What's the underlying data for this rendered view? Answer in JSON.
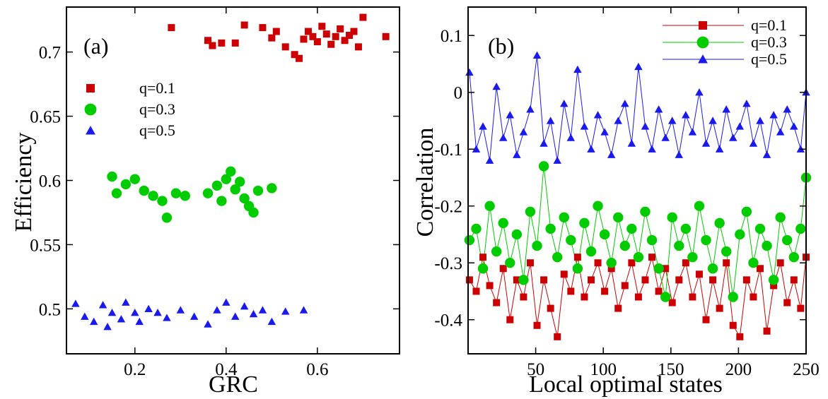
{
  "chart_data": [
    {
      "type": "scatter",
      "panel_label": "(a)",
      "xlabel": "GRC",
      "ylabel": "Efficiency",
      "xlim": [
        0.05,
        0.78
      ],
      "ylim": [
        0.465,
        0.735
      ],
      "xticks": [
        0.2,
        0.4,
        0.6
      ],
      "xtick_labels": [
        "0.2",
        "0.4",
        "0.6"
      ],
      "yticks": [
        0.5,
        0.55,
        0.6,
        0.65,
        0.7
      ],
      "ytick_labels": [
        "0.5",
        "0.55",
        "0.6",
        "0.65",
        "0.7"
      ],
      "grid": false,
      "legend": "top-left",
      "series": [
        {
          "name": "q=0.1",
          "marker": "square",
          "color": "#cc0000",
          "points": [
            [
              0.28,
              0.719
            ],
            [
              0.36,
              0.709
            ],
            [
              0.37,
              0.705
            ],
            [
              0.39,
              0.707
            ],
            [
              0.42,
              0.707
            ],
            [
              0.44,
              0.721
            ],
            [
              0.48,
              0.719
            ],
            [
              0.5,
              0.711
            ],
            [
              0.51,
              0.716
            ],
            [
              0.53,
              0.704
            ],
            [
              0.55,
              0.698
            ],
            [
              0.56,
              0.695
            ],
            [
              0.57,
              0.71
            ],
            [
              0.58,
              0.716
            ],
            [
              0.59,
              0.712
            ],
            [
              0.6,
              0.708
            ],
            [
              0.61,
              0.72
            ],
            [
              0.62,
              0.714
            ],
            [
              0.63,
              0.706
            ],
            [
              0.64,
              0.712
            ],
            [
              0.65,
              0.718
            ],
            [
              0.66,
              0.709
            ],
            [
              0.67,
              0.713
            ],
            [
              0.68,
              0.716
            ],
            [
              0.69,
              0.704
            ],
            [
              0.7,
              0.727
            ],
            [
              0.75,
              0.712
            ]
          ]
        },
        {
          "name": "q=0.3",
          "marker": "circle",
          "color": "#00cc00",
          "points": [
            [
              0.15,
              0.603
            ],
            [
              0.16,
              0.59
            ],
            [
              0.18,
              0.597
            ],
            [
              0.2,
              0.601
            ],
            [
              0.22,
              0.592
            ],
            [
              0.24,
              0.588
            ],
            [
              0.26,
              0.584
            ],
            [
              0.27,
              0.571
            ],
            [
              0.29,
              0.59
            ],
            [
              0.31,
              0.588
            ],
            [
              0.36,
              0.59
            ],
            [
              0.38,
              0.596
            ],
            [
              0.39,
              0.584
            ],
            [
              0.4,
              0.601
            ],
            [
              0.41,
              0.607
            ],
            [
              0.42,
              0.593
            ],
            [
              0.43,
              0.599
            ],
            [
              0.44,
              0.586
            ],
            [
              0.45,
              0.58
            ],
            [
              0.46,
              0.575
            ],
            [
              0.47,
              0.592
            ],
            [
              0.5,
              0.594
            ]
          ]
        },
        {
          "name": "q=0.5",
          "marker": "triangle",
          "color": "#1a1aee",
          "points": [
            [
              0.07,
              0.504
            ],
            [
              0.09,
              0.494
            ],
            [
              0.11,
              0.49
            ],
            [
              0.13,
              0.503
            ],
            [
              0.14,
              0.486
            ],
            [
              0.15,
              0.497
            ],
            [
              0.17,
              0.492
            ],
            [
              0.18,
              0.505
            ],
            [
              0.2,
              0.497
            ],
            [
              0.21,
              0.49
            ],
            [
              0.23,
              0.5
            ],
            [
              0.25,
              0.497
            ],
            [
              0.27,
              0.493
            ],
            [
              0.3,
              0.499
            ],
            [
              0.33,
              0.494
            ],
            [
              0.36,
              0.488
            ],
            [
              0.38,
              0.499
            ],
            [
              0.4,
              0.505
            ],
            [
              0.42,
              0.494
            ],
            [
              0.44,
              0.502
            ],
            [
              0.46,
              0.496
            ],
            [
              0.48,
              0.499
            ],
            [
              0.5,
              0.49
            ],
            [
              0.53,
              0.498
            ],
            [
              0.57,
              0.499
            ]
          ]
        }
      ]
    },
    {
      "type": "line",
      "panel_label": "(b)",
      "xlabel": "Local optimal states",
      "ylabel": "Correlation",
      "xlim": [
        0,
        250
      ],
      "ylim": [
        -0.46,
        0.15
      ],
      "xticks": [
        50,
        100,
        150,
        200,
        250
      ],
      "xtick_labels": [
        "50",
        "100",
        "150",
        "200",
        "250"
      ],
      "yticks": [
        0.1,
        0,
        -0.1,
        -0.2,
        -0.3,
        -0.4
      ],
      "ytick_labels": [
        "0.1",
        "0",
        "-0.1",
        "-0.2",
        "-0.3",
        "-0.4"
      ],
      "grid": false,
      "legend": "top-right",
      "x": [
        1,
        6,
        11,
        16,
        21,
        26,
        31,
        36,
        41,
        46,
        51,
        56,
        61,
        66,
        71,
        76,
        81,
        86,
        91,
        96,
        101,
        106,
        111,
        116,
        121,
        126,
        131,
        136,
        141,
        146,
        151,
        156,
        161,
        166,
        171,
        176,
        181,
        186,
        191,
        196,
        201,
        206,
        211,
        216,
        221,
        226,
        231,
        236,
        241,
        246,
        250
      ],
      "series": [
        {
          "name": "q=0.1",
          "marker": "square",
          "color": "#cc0000",
          "values": [
            -0.33,
            -0.35,
            -0.29,
            -0.34,
            -0.37,
            -0.31,
            -0.4,
            -0.33,
            -0.36,
            -0.3,
            -0.41,
            -0.33,
            -0.38,
            -0.43,
            -0.32,
            -0.35,
            -0.29,
            -0.36,
            -0.33,
            -0.3,
            -0.35,
            -0.31,
            -0.38,
            -0.34,
            -0.3,
            -0.36,
            -0.33,
            -0.29,
            -0.35,
            -0.31,
            -0.37,
            -0.33,
            -0.3,
            -0.36,
            -0.32,
            -0.4,
            -0.33,
            -0.38,
            -0.3,
            -0.41,
            -0.43,
            -0.33,
            -0.36,
            -0.31,
            -0.42,
            -0.34,
            -0.3,
            -0.37,
            -0.33,
            -0.38,
            -0.29
          ]
        },
        {
          "name": "q=0.3",
          "marker": "circle",
          "color": "#00cc00",
          "values": [
            -0.26,
            -0.24,
            -0.31,
            -0.2,
            -0.28,
            -0.23,
            -0.3,
            -0.25,
            -0.33,
            -0.21,
            -0.27,
            -0.13,
            -0.24,
            -0.29,
            -0.22,
            -0.26,
            -0.31,
            -0.23,
            -0.28,
            -0.2,
            -0.25,
            -0.3,
            -0.22,
            -0.27,
            -0.24,
            -0.29,
            -0.21,
            -0.26,
            -0.31,
            -0.36,
            -0.22,
            -0.27,
            -0.24,
            -0.29,
            -0.2,
            -0.26,
            -0.31,
            -0.23,
            -0.28,
            -0.36,
            -0.25,
            -0.21,
            -0.3,
            -0.24,
            -0.27,
            -0.33,
            -0.22,
            -0.26,
            -0.29,
            -0.24,
            -0.15
          ]
        },
        {
          "name": "q=0.5",
          "marker": "triangle",
          "color": "#1a1aee",
          "values": [
            0.035,
            -0.1,
            -0.06,
            -0.12,
            0.01,
            -0.08,
            -0.04,
            -0.11,
            -0.07,
            -0.03,
            0.065,
            -0.09,
            -0.05,
            -0.12,
            -0.02,
            -0.08,
            0.04,
            -0.06,
            -0.1,
            -0.04,
            -0.07,
            -0.11,
            -0.05,
            -0.02,
            -0.09,
            0.045,
            -0.06,
            -0.1,
            -0.03,
            -0.08,
            -0.05,
            -0.11,
            -0.04,
            -0.07,
            0.0,
            -0.09,
            -0.05,
            -0.1,
            -0.03,
            -0.08,
            -0.06,
            -0.02,
            -0.09,
            -0.05,
            -0.11,
            -0.04,
            -0.07,
            -0.03,
            -0.06,
            -0.1,
            0.0
          ]
        }
      ]
    }
  ]
}
